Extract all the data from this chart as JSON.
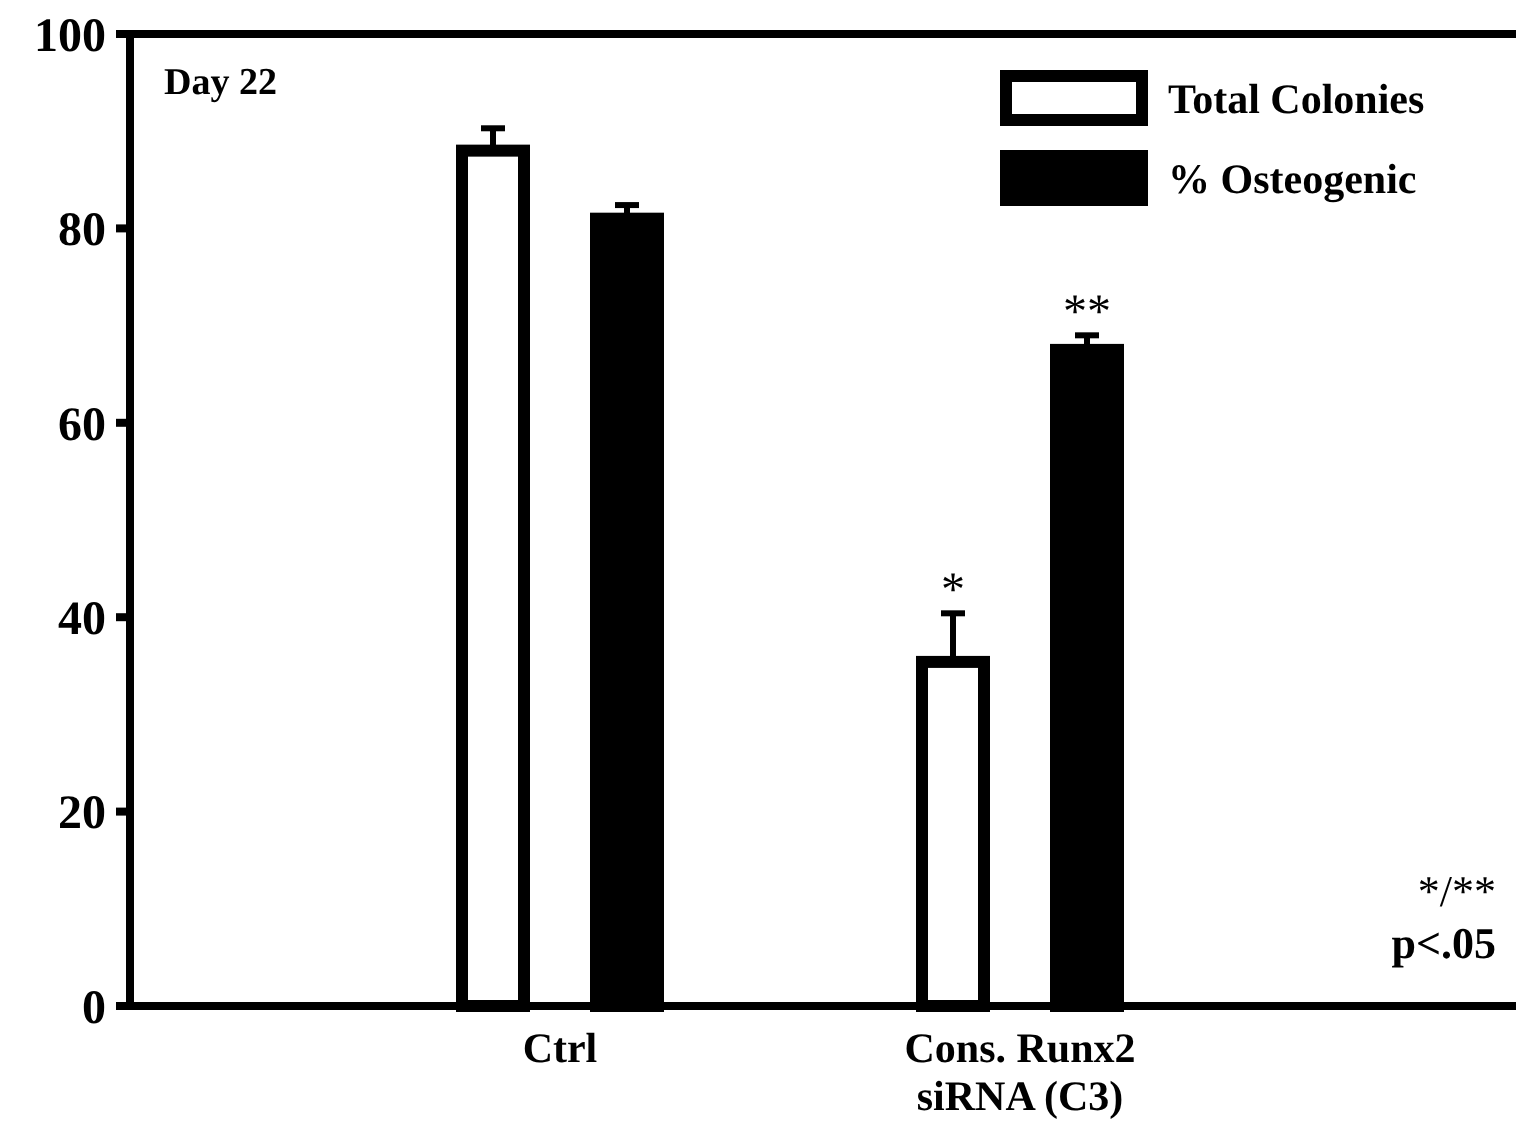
{
  "chart_data": {
    "type": "bar",
    "categories": [
      "Ctrl",
      "Cons. Runx2\nsiRNA (C3)"
    ],
    "series": [
      {
        "name": "Total Colonies",
        "color": "#ffffff",
        "values": [
          88.0,
          35.4
        ],
        "errors": [
          [
            88.0,
            90.3
          ],
          [
            35.4,
            40.4
          ]
        ]
      },
      {
        "name": "% Osteogenic",
        "color": "#000000",
        "values": [
          81.0,
          67.5
        ],
        "errors": [
          [
            81.0,
            82.4
          ],
          [
            67.5,
            69.0
          ]
        ]
      }
    ],
    "ylim": [
      0,
      100
    ],
    "yticks": [
      0,
      20,
      40,
      60,
      80,
      100
    ],
    "grid": false,
    "legend": "top right",
    "annotations": [
      "Day 22",
      "*",
      "**",
      "*/**\np<.05"
    ]
  }
}
